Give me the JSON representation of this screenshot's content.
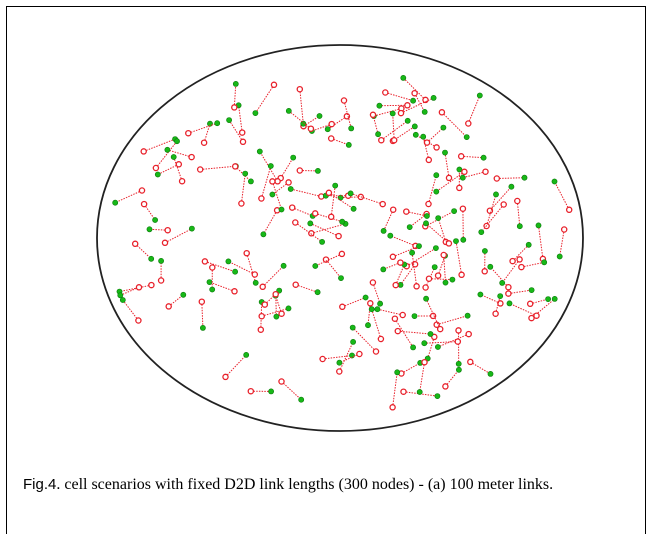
{
  "figure": {
    "caption_label": "Fig.4",
    "caption_text": ". cell scenarios with fixed D2D link lengths (300 nodes) - (a) 100 meter links."
  },
  "colors": {
    "transmitter": "#e8212b",
    "receiver": "#17b817",
    "link": "#e8212b",
    "boundary": "#222222"
  }
}
